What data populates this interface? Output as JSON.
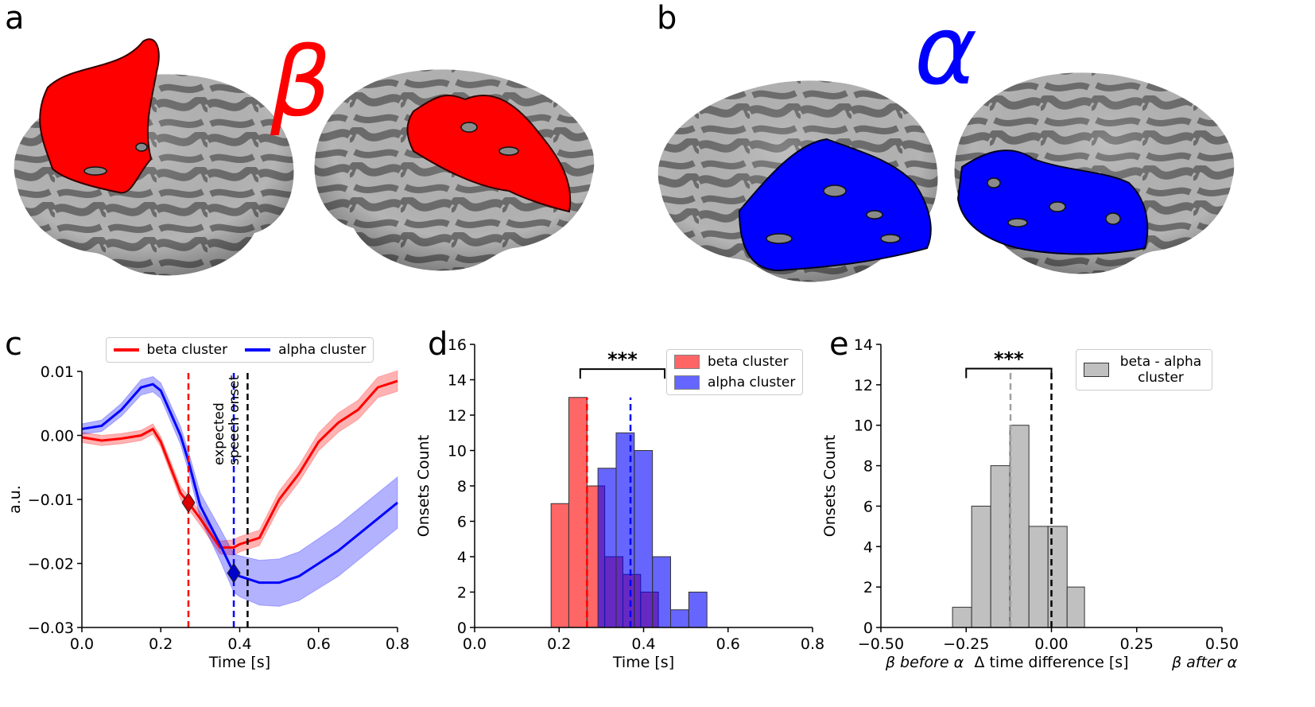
{
  "figure": {
    "panel_labels": [
      "a",
      "b",
      "c",
      "d",
      "e"
    ],
    "brain_labels": [
      {
        "text": "β",
        "color": "#ff0000"
      },
      {
        "text": "α",
        "color": "#0000ff"
      }
    ]
  },
  "chart_data": [
    {
      "type": "line",
      "xlabel": "Time [s]",
      "ylabel": "a.u.",
      "x": [
        0,
        0.05,
        0.1,
        0.15,
        0.18,
        0.2,
        0.25,
        0.27,
        0.3,
        0.35,
        0.385,
        0.4,
        0.45,
        0.5,
        0.55,
        0.6,
        0.65,
        0.7,
        0.75,
        0.8
      ],
      "series": [
        {
          "name": "beta cluster",
          "color": "#ff0000",
          "values": [
            -0.0003,
            -0.0008,
            -0.0005,
            0,
            0.001,
            -0.001,
            -0.009,
            -0.0105,
            -0.013,
            -0.0175,
            -0.0175,
            -0.017,
            -0.016,
            -0.01,
            -0.006,
            -0.001,
            0.002,
            0.004,
            0.0075,
            0.0085
          ],
          "error": [
            0.0008,
            0.0008,
            0.0008,
            0.0008,
            0.0008,
            0.0008,
            0.001,
            0.001,
            0.001,
            0.001,
            0.0012,
            0.0012,
            0.0012,
            0.0013,
            0.0013,
            0.0014,
            0.0015,
            0.0015,
            0.0016,
            0.0016
          ]
        },
        {
          "name": "alpha cluster",
          "color": "#0000ff",
          "values": [
            0.001,
            0.0015,
            0.004,
            0.0075,
            0.008,
            0.007,
            0.0,
            -0.004,
            -0.011,
            -0.017,
            -0.0215,
            -0.022,
            -0.023,
            -0.023,
            -0.022,
            -0.02,
            -0.018,
            -0.0155,
            -0.013,
            -0.0105
          ],
          "error": [
            0.0008,
            0.0009,
            0.001,
            0.0012,
            0.0012,
            0.0012,
            0.0014,
            0.0015,
            0.002,
            0.0025,
            0.003,
            0.0032,
            0.0035,
            0.0037,
            0.0038,
            0.0039,
            0.004,
            0.004,
            0.004,
            0.004
          ]
        }
      ],
      "vlines": [
        {
          "x": 0.27,
          "color": "#ff0000"
        },
        {
          "x": 0.385,
          "color": "#0000ff"
        },
        {
          "x": 0.42,
          "color": "#000000",
          "label": "expected speech onset"
        }
      ],
      "markers": [
        {
          "x": 0.27,
          "y": -0.0105,
          "color": "#dd0000"
        },
        {
          "x": 0.385,
          "y": -0.0215,
          "color": "#0000cc"
        }
      ],
      "xlim": [
        0,
        0.8
      ],
      "ylim": [
        -0.03,
        0.01
      ],
      "xticks": [
        {
          "value": 0,
          "label": "0.0"
        },
        0.2,
        0.4,
        0.6,
        0.8
      ],
      "yticks": [
        {
          "value": -0.03,
          "label": "−0.03"
        },
        {
          "value": -0.02,
          "label": "−0.02"
        },
        {
          "value": -0.01,
          "label": "−0.01"
        },
        {
          "value": 0,
          "label": "0.00"
        },
        0.01
      ],
      "legend": "upper center"
    },
    {
      "type": "histogram",
      "xlabel": "Time [s]",
      "ylabel": "Onsets Count",
      "series": [
        {
          "name": "beta cluster",
          "color": "#ff0000",
          "bins": [
            0.181,
            0.223,
            0.266,
            0.308,
            0.351,
            0.393,
            0.435
          ],
          "values": [
            7,
            13,
            8,
            4,
            3,
            2
          ]
        },
        {
          "name": "alpha cluster",
          "color": "#0000ff",
          "bins": [
            0.292,
            0.335,
            0.378,
            0.421,
            0.464,
            0.507,
            0.55
          ],
          "values": [
            9,
            11,
            10,
            4,
            1,
            2
          ]
        }
      ],
      "vlines": [
        {
          "x": 0.266,
          "color": "#ff0000",
          "top": 13
        },
        {
          "x": 0.369,
          "color": "#0000ff",
          "top": 13
        }
      ],
      "brackets": [
        {
          "text": "***",
          "x1": 0.25,
          "x2": 0.45,
          "y": 14.6
        }
      ],
      "xlim": [
        0,
        0.8
      ],
      "ylim": [
        0,
        16
      ],
      "xticks": [
        {
          "value": 0,
          "label": "0.0"
        },
        0.2,
        0.4,
        0.6,
        0.8
      ],
      "yticks": [
        0,
        2,
        4,
        6,
        8,
        10,
        12,
        14,
        16
      ],
      "legend": "upper right"
    },
    {
      "type": "histogram",
      "xlabel": "Δ time difference [s]",
      "x_end_labels": [
        "β before α",
        "β after α"
      ],
      "ylabel": "Onsets Count",
      "series": [
        {
          "name": "beta - alpha cluster",
          "color": "#c0c0c0",
          "bins": [
            -0.29,
            -0.234,
            -0.178,
            -0.122,
            -0.066,
            -0.01,
            0.046,
            0.097
          ],
          "values": [
            1,
            6,
            8,
            10,
            5,
            5,
            2
          ]
        }
      ],
      "vlines": [
        {
          "x": -0.12,
          "color": "#a0a0a0",
          "top": 12.8
        },
        {
          "x": 0,
          "color": "#000000",
          "top": 12.8
        }
      ],
      "brackets": [
        {
          "text": "***",
          "x1": -0.25,
          "x2": 0,
          "y": 12.8
        }
      ],
      "xlim": [
        -0.5,
        0.5
      ],
      "ylim": [
        0,
        14
      ],
      "xticks": [
        {
          "value": -0.5,
          "label": "−0.50"
        },
        {
          "value": -0.25,
          "label": "−0.25"
        },
        {
          "value": 0,
          "label": "0.00"
        },
        0.25,
        {
          "value": 0.5,
          "label": "0.50"
        }
      ],
      "yticks": [
        0,
        2,
        4,
        6,
        8,
        10,
        12,
        14
      ],
      "legend": "upper right"
    }
  ]
}
